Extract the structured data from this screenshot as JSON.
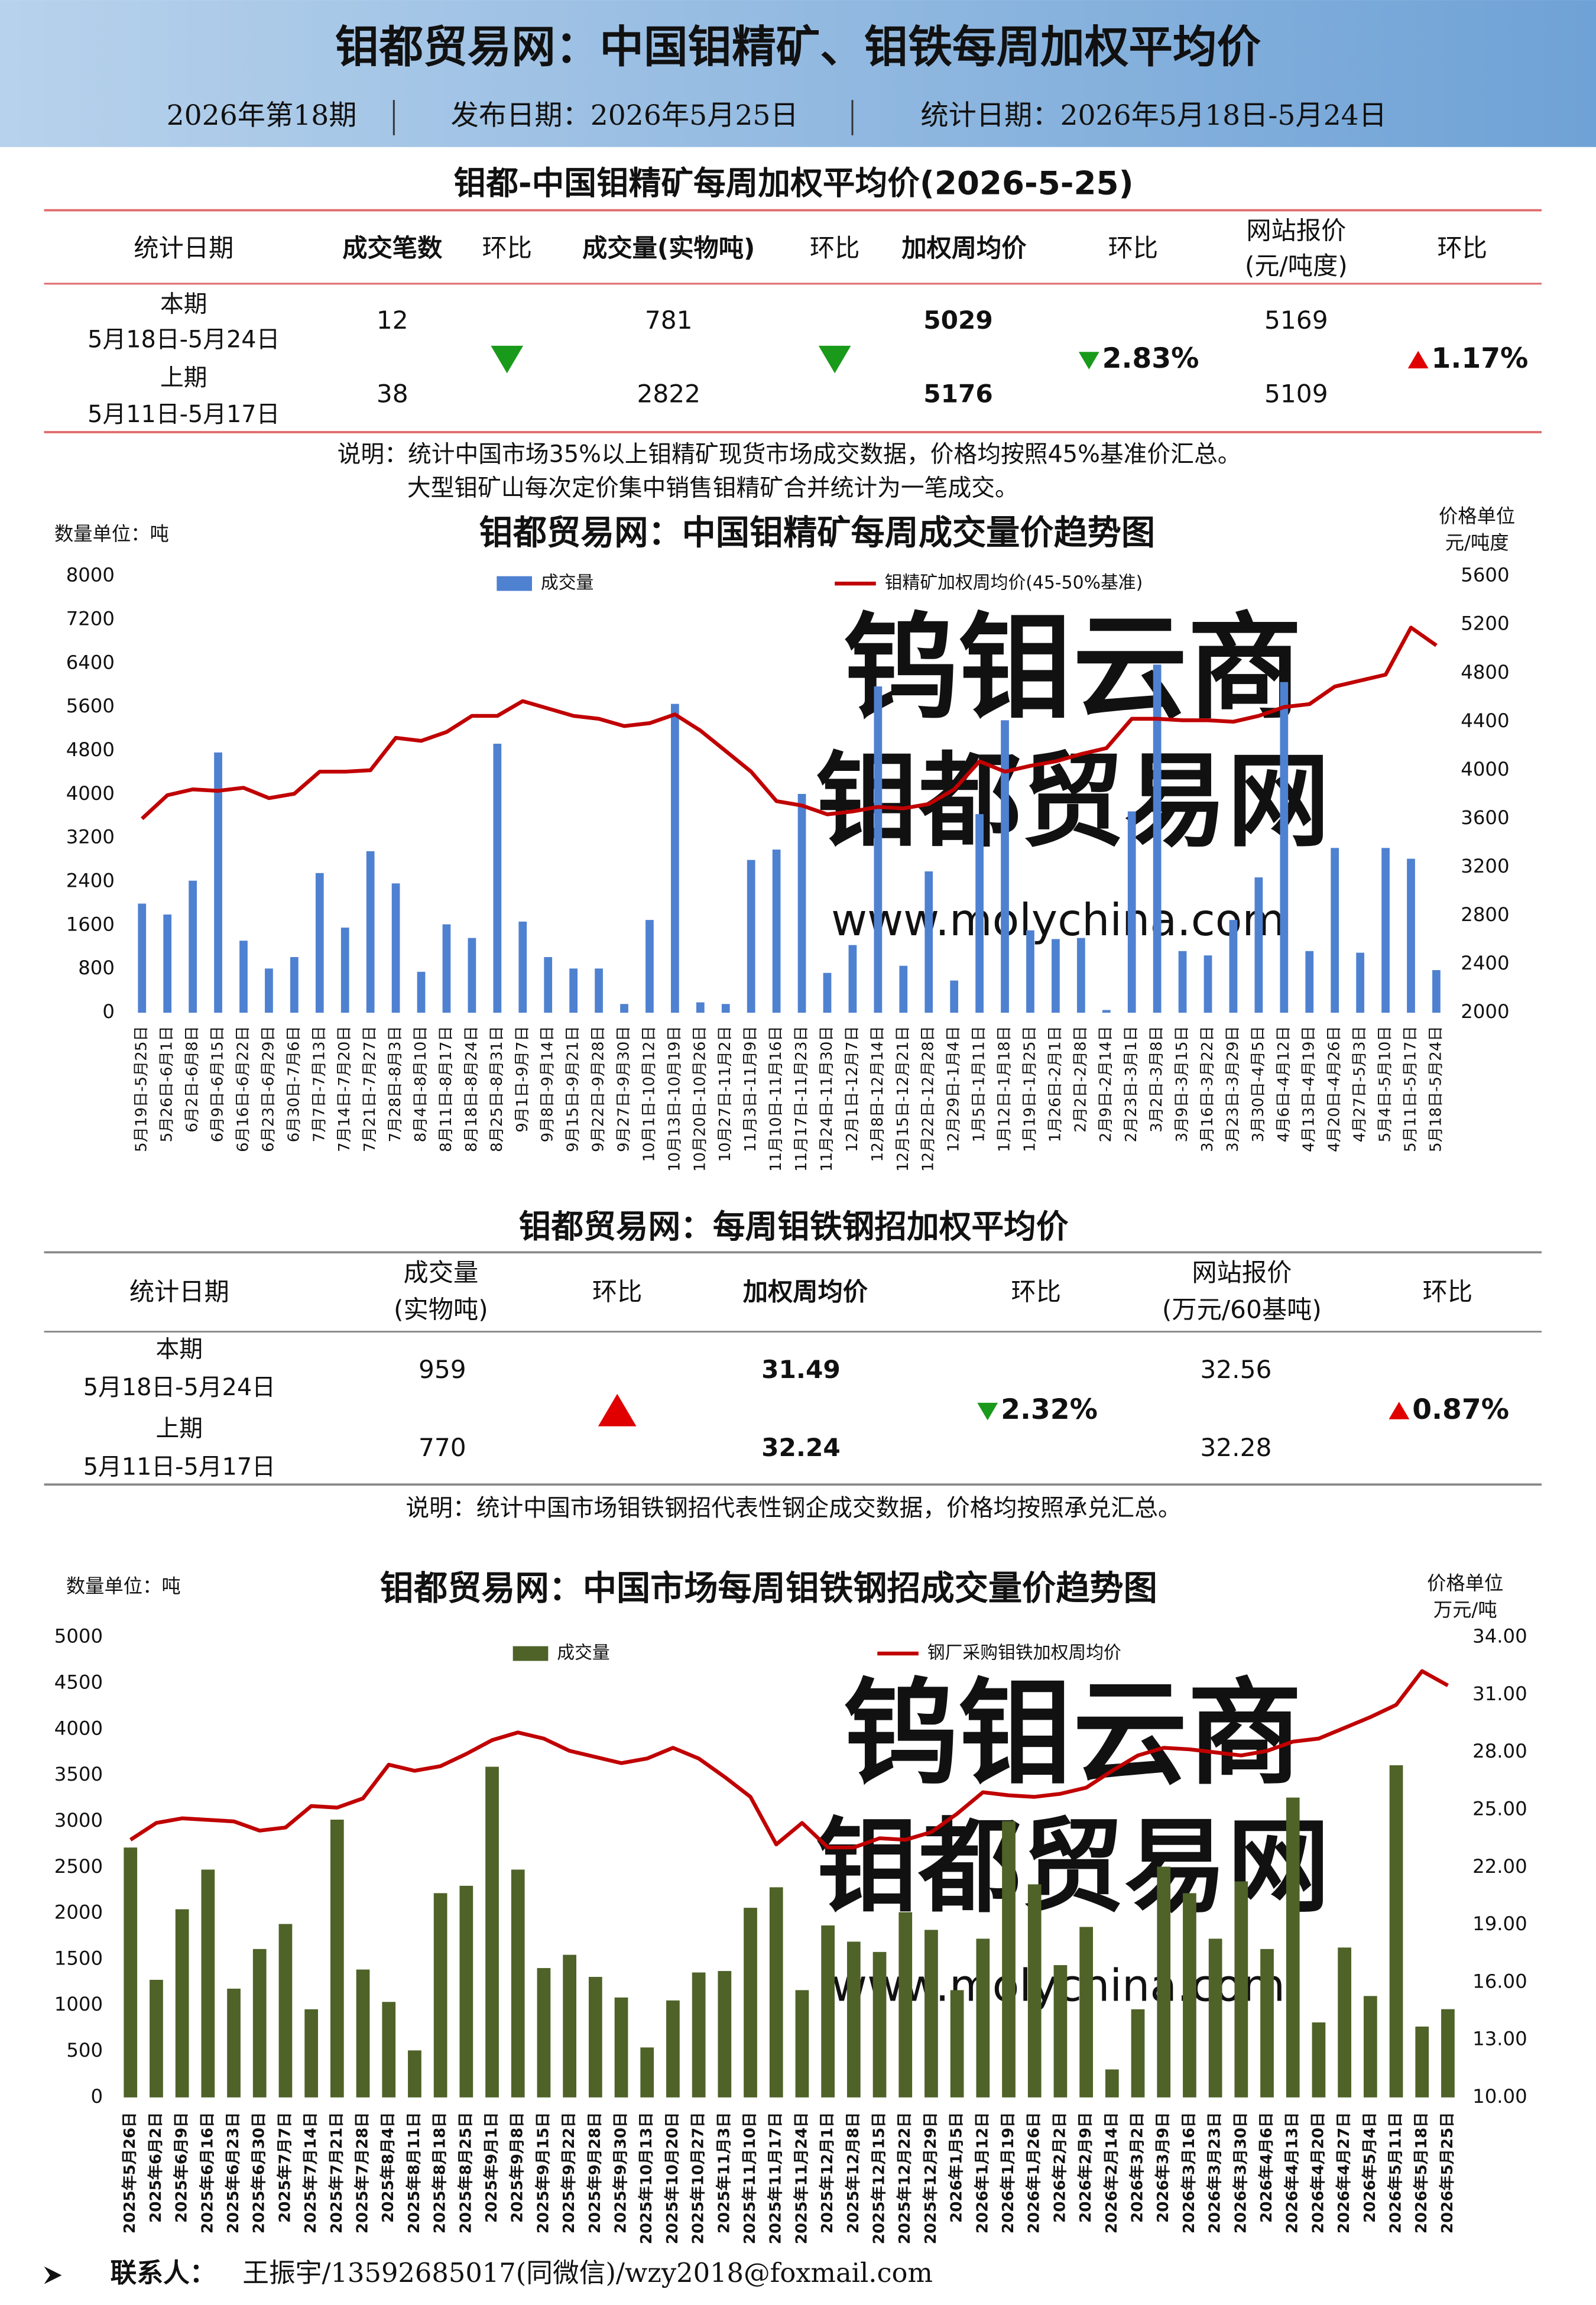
{
  "header": {
    "title": "钼都贸易网：中国钼精矿、钼铁每周加权平均价",
    "issue": "2026年第18期",
    "publish_date": "发布日期：2026年5月25日",
    "stat_date": "统计日期：2026年5月18日-5月24日"
  },
  "table1": {
    "title": "钼都-中国钼精矿每周加权平均价(2026-5-25)",
    "headers": [
      [
        "统计日期"
      ],
      [
        "成交笔数"
      ],
      [
        "环比"
      ],
      [
        "成交量(实物吨)"
      ],
      [
        "环比"
      ],
      [
        "加权周均价"
      ],
      [
        "环比"
      ],
      [
        "网站报价",
        "(元/吨度)"
      ],
      [
        "环比"
      ]
    ],
    "rows": [
      {
        "period": "本期",
        "dates": "5月18日-5月24日",
        "count": 12,
        "volume": 781,
        "price": 5029,
        "quote": 5169
      },
      {
        "period": "上期",
        "dates": "5月11日-5月17日",
        "count": 38,
        "volume": 2822,
        "price": 5176,
        "quote": 5109
      }
    ],
    "count_change": {
      "direction": "down"
    },
    "volume_change": {
      "direction": "down"
    },
    "price_change": {
      "direction": "down",
      "text": "2.83%"
    },
    "quote_change": {
      "direction": "up",
      "text": "1.17%"
    },
    "notes": [
      "说明：统计中国市场35%以上钼精矿现货市场成交数据，价格均按照45%基准价汇总。",
      "大型钼矿山每次定价集中销售钼精矿合并统计为一笔成交。"
    ]
  },
  "table2": {
    "title": "钼都贸易网：每周钼铁钢招加权平均价",
    "headers": [
      [
        "统计日期"
      ],
      [
        "成交量",
        "(实物吨)"
      ],
      [
        "环比"
      ],
      [
        "加权周均价"
      ],
      [
        "环比"
      ],
      [
        "网站报价",
        "(万元/60基吨)"
      ],
      [
        "环比"
      ]
    ],
    "rows": [
      {
        "period": "本期",
        "dates": "5月18日-5月24日",
        "volume": 959,
        "price": 31.49,
        "quote": 32.56
      },
      {
        "period": "上期",
        "dates": "5月11日-5月17日",
        "volume": 770,
        "price": 32.24,
        "quote": 32.28
      }
    ],
    "volume_change": {
      "direction": "up"
    },
    "price_change": {
      "direction": "down",
      "text": "2.32%"
    },
    "quote_change": {
      "direction": "up",
      "text": "0.87%"
    },
    "notes": [
      "说明：统计中国市场钼铁钢招代表性钢企成交数据，价格均按照承兑汇总。"
    ]
  },
  "watermark": {
    "lines": [
      "钨钼云商",
      "钼都贸易网",
      "www.molychina.com"
    ]
  },
  "chart_data": [
    {
      "type": "combo",
      "title": "钼都贸易网：中国钼精矿每周成交量价趋势图",
      "y_unit": "数量单位：吨",
      "y2_unit": [
        "价格单位",
        "元/吨度"
      ],
      "categories": [
        "5月19日-5月25日",
        "5月26日-6月1日",
        "6月2日-6月8日",
        "6月9日-6月15日",
        "6月16日-6月22日",
        "6月23日-6月29日",
        "6月30日-7月6日",
        "7月7日-7月13日",
        "7月14日-7月20日",
        "7月21日-7月27日",
        "7月28日-8月3日",
        "8月4日-8月10日",
        "8月11日-8月17日",
        "8月18日-8月24日",
        "8月25日-8月31日",
        "9月1日-9月7日",
        "9月8日-9月14日",
        "9月15日-9月21日",
        "9月22日-9月28日",
        "9月27日-9月30日",
        "10月1日-10月12日",
        "10月13日-10月19日",
        "10月20日-10月26日",
        "10月27日-11月2日",
        "11月3日-11月9日",
        "11月10日-11月16日",
        "11月17日-11月23日",
        "11月24日-11月30日",
        "12月1日-12月7日",
        "12月8日-12月14日",
        "12月15日-12月21日",
        "12月22日-12月28日",
        "12月29日-1月4日",
        "1月5日-1月11日",
        "1月12日-1月18日",
        "1月19日-1月25日",
        "1月26日-2月1日",
        "2月2日-2月8日",
        "2月9日-2月14日",
        "2月23日-3月1日",
        "3月2日-3月8日",
        "3月9日-3月15日",
        "3月16日-3月22日",
        "3月23日-3月29日",
        "3月30日-4月5日",
        "4月6日-4月12日",
        "4月13日-4月19日",
        "4月20日-4月26日",
        "4月27日-5月3日",
        "5月4日-5月10日",
        "5月11日-5月17日",
        "5月18日-5月24日"
      ],
      "series": [
        {
          "name": "成交量",
          "type": "bar",
          "color": "#4f81d1",
          "values": [
            2000,
            1800,
            2420,
            4770,
            1320,
            810,
            1020,
            2560,
            1560,
            2960,
            2370,
            750,
            1620,
            1370,
            4930,
            1670,
            1020,
            810,
            810,
            160,
            1700,
            5660,
            190,
            160,
            2800,
            2990,
            4010,
            730,
            1240,
            5980,
            860,
            2590,
            590,
            3640,
            5360,
            1510,
            1350,
            1370,
            50,
            3690,
            6380,
            1130,
            1050,
            1700,
            2480,
            6060,
            1130,
            3020,
            1100,
            3020,
            2822,
            781
          ]
        },
        {
          "name": "钼精矿加权周均价(45-50%基准)",
          "type": "line",
          "axis": "y2",
          "color": "#c00000",
          "values": [
            3600,
            3794,
            3842,
            3830,
            3855,
            3770,
            3806,
            3988,
            3988,
            4000,
            4267,
            4242,
            4315,
            4448,
            4448,
            4570,
            4509,
            4448,
            4424,
            4364,
            4388,
            4460,
            4327,
            4158,
            3988,
            3745,
            3709,
            3636,
            3660,
            3697,
            3685,
            3721,
            3842,
            4073,
            3988,
            4036,
            4073,
            4133,
            4182,
            4424,
            4424,
            4412,
            4412,
            4400,
            4448,
            4521,
            4545,
            4690,
            4739,
            4788,
            5176,
            5029
          ]
        }
      ],
      "ylim": [
        0,
        8000
      ],
      "yticks": [
        0,
        800,
        1600,
        2400,
        3200,
        4000,
        4800,
        5600,
        6400,
        7200,
        8000
      ],
      "y2lim": [
        2000,
        5600
      ],
      "y2ticks": [
        2000,
        2400,
        2800,
        3200,
        3600,
        4000,
        4400,
        4800,
        5200,
        5600
      ],
      "grid": false,
      "legend": "top"
    },
    {
      "type": "combo",
      "title": "钼都贸易网：中国市场每周钼铁钢招成交量价趋势图",
      "y_unit": "数量单位：吨",
      "y2_unit": [
        "价格单位",
        "万元/吨"
      ],
      "categories": [
        "2025年5月26日",
        "2025年6月2日",
        "2025年6月9日",
        "2025年6月16日",
        "2025年6月23日",
        "2025年6月30日",
        "2025年7月7日",
        "2025年7月14日",
        "2025年7月21日",
        "2025年7月28日",
        "2025年8月4日",
        "2025年8月11日",
        "2025年8月18日",
        "2025年8月25日",
        "2025年9月1日",
        "2025年9月8日",
        "2025年9月15日",
        "2025年9月22日",
        "2025年9月28日",
        "2025年9月30日",
        "2025年10月13日",
        "2025年10月20日",
        "2025年10月27日",
        "2025年11月3日",
        "2025年11月10日",
        "2025年11月17日",
        "2025年11月24日",
        "2025年12月1日",
        "2025年12月8日",
        "2025年12月15日",
        "2025年12月22日",
        "2025年12月29日",
        "2026年1月5日",
        "2026年1月12日",
        "2026年1月19日",
        "2026年1月26日",
        "2026年2月2日",
        "2026年2月9日",
        "2026年2月14日",
        "2026年3月2日",
        "2026年3月9日",
        "2026年3月16日",
        "2026年3月23日",
        "2026年3月30日",
        "2026年4月6日",
        "2026年4月13日",
        "2026年4月20日",
        "2026年4月27日",
        "2026年5月4日",
        "2026年5月11日",
        "2026年5月18日",
        "2026年5月25日"
      ],
      "series": [
        {
          "name": "成交量",
          "type": "bar",
          "color": "#4f6228",
          "values": [
            2716,
            1278,
            2045,
            2476,
            1182,
            1613,
            1885,
            958,
            3019,
            1390,
            1038,
            511,
            2220,
            2300,
            3594,
            2476,
            1406,
            1550,
            1310,
            1086,
            543,
            1054,
            1358,
            1374,
            2061,
            2284,
            1166,
            1869,
            1693,
            1581,
            2013,
            1821,
            1166,
            1725,
            3003,
            2316,
            1438,
            1853,
            304,
            958,
            2508,
            2220,
            1725,
            2348,
            1613,
            3259,
            815,
            1629,
            1102,
            3610,
            770,
            959
          ]
        },
        {
          "name": "钢厂采购钼铁加权周均价",
          "type": "line",
          "axis": "y2",
          "color": "#c00000",
          "values": [
            23.44,
            24.32,
            24.56,
            24.48,
            24.4,
            23.92,
            24.08,
            25.2,
            25.12,
            25.6,
            27.36,
            27.04,
            27.28,
            27.92,
            28.64,
            29.04,
            28.72,
            28.08,
            27.76,
            27.44,
            27.68,
            28.24,
            27.68,
            26.72,
            25.68,
            23.2,
            24.32,
            23.04,
            23.04,
            23.52,
            23.44,
            23.84,
            24.8,
            25.92,
            25.76,
            25.68,
            25.84,
            26.16,
            27.04,
            27.84,
            28.24,
            28.16,
            28.0,
            27.84,
            28.08,
            28.56,
            28.72,
            29.28,
            29.84,
            30.48,
            32.24,
            31.49
          ]
        }
      ],
      "ylim": [
        0,
        5000
      ],
      "yticks": [
        0,
        500,
        1000,
        1500,
        2000,
        2500,
        3000,
        3500,
        4000,
        4500,
        5000
      ],
      "y2lim": [
        10,
        34
      ],
      "y2ticks": [
        {
          "value": 10,
          "label": "10.00"
        },
        {
          "value": 13,
          "label": "13.00"
        },
        {
          "value": 16,
          "label": "16.00"
        },
        {
          "value": 19,
          "label": "19.00"
        },
        {
          "value": 22,
          "label": "22.00"
        },
        {
          "value": 25,
          "label": "25.00"
        },
        {
          "value": 28,
          "label": "28.00"
        },
        {
          "value": 31,
          "label": "31.00"
        },
        {
          "value": 34,
          "label": "34.00"
        }
      ],
      "grid": false,
      "legend": "top"
    }
  ],
  "footer": {
    "label": "联系人：",
    "text": "王振宇/13592685017(同微信)/wzy2018@foxmail.com"
  }
}
